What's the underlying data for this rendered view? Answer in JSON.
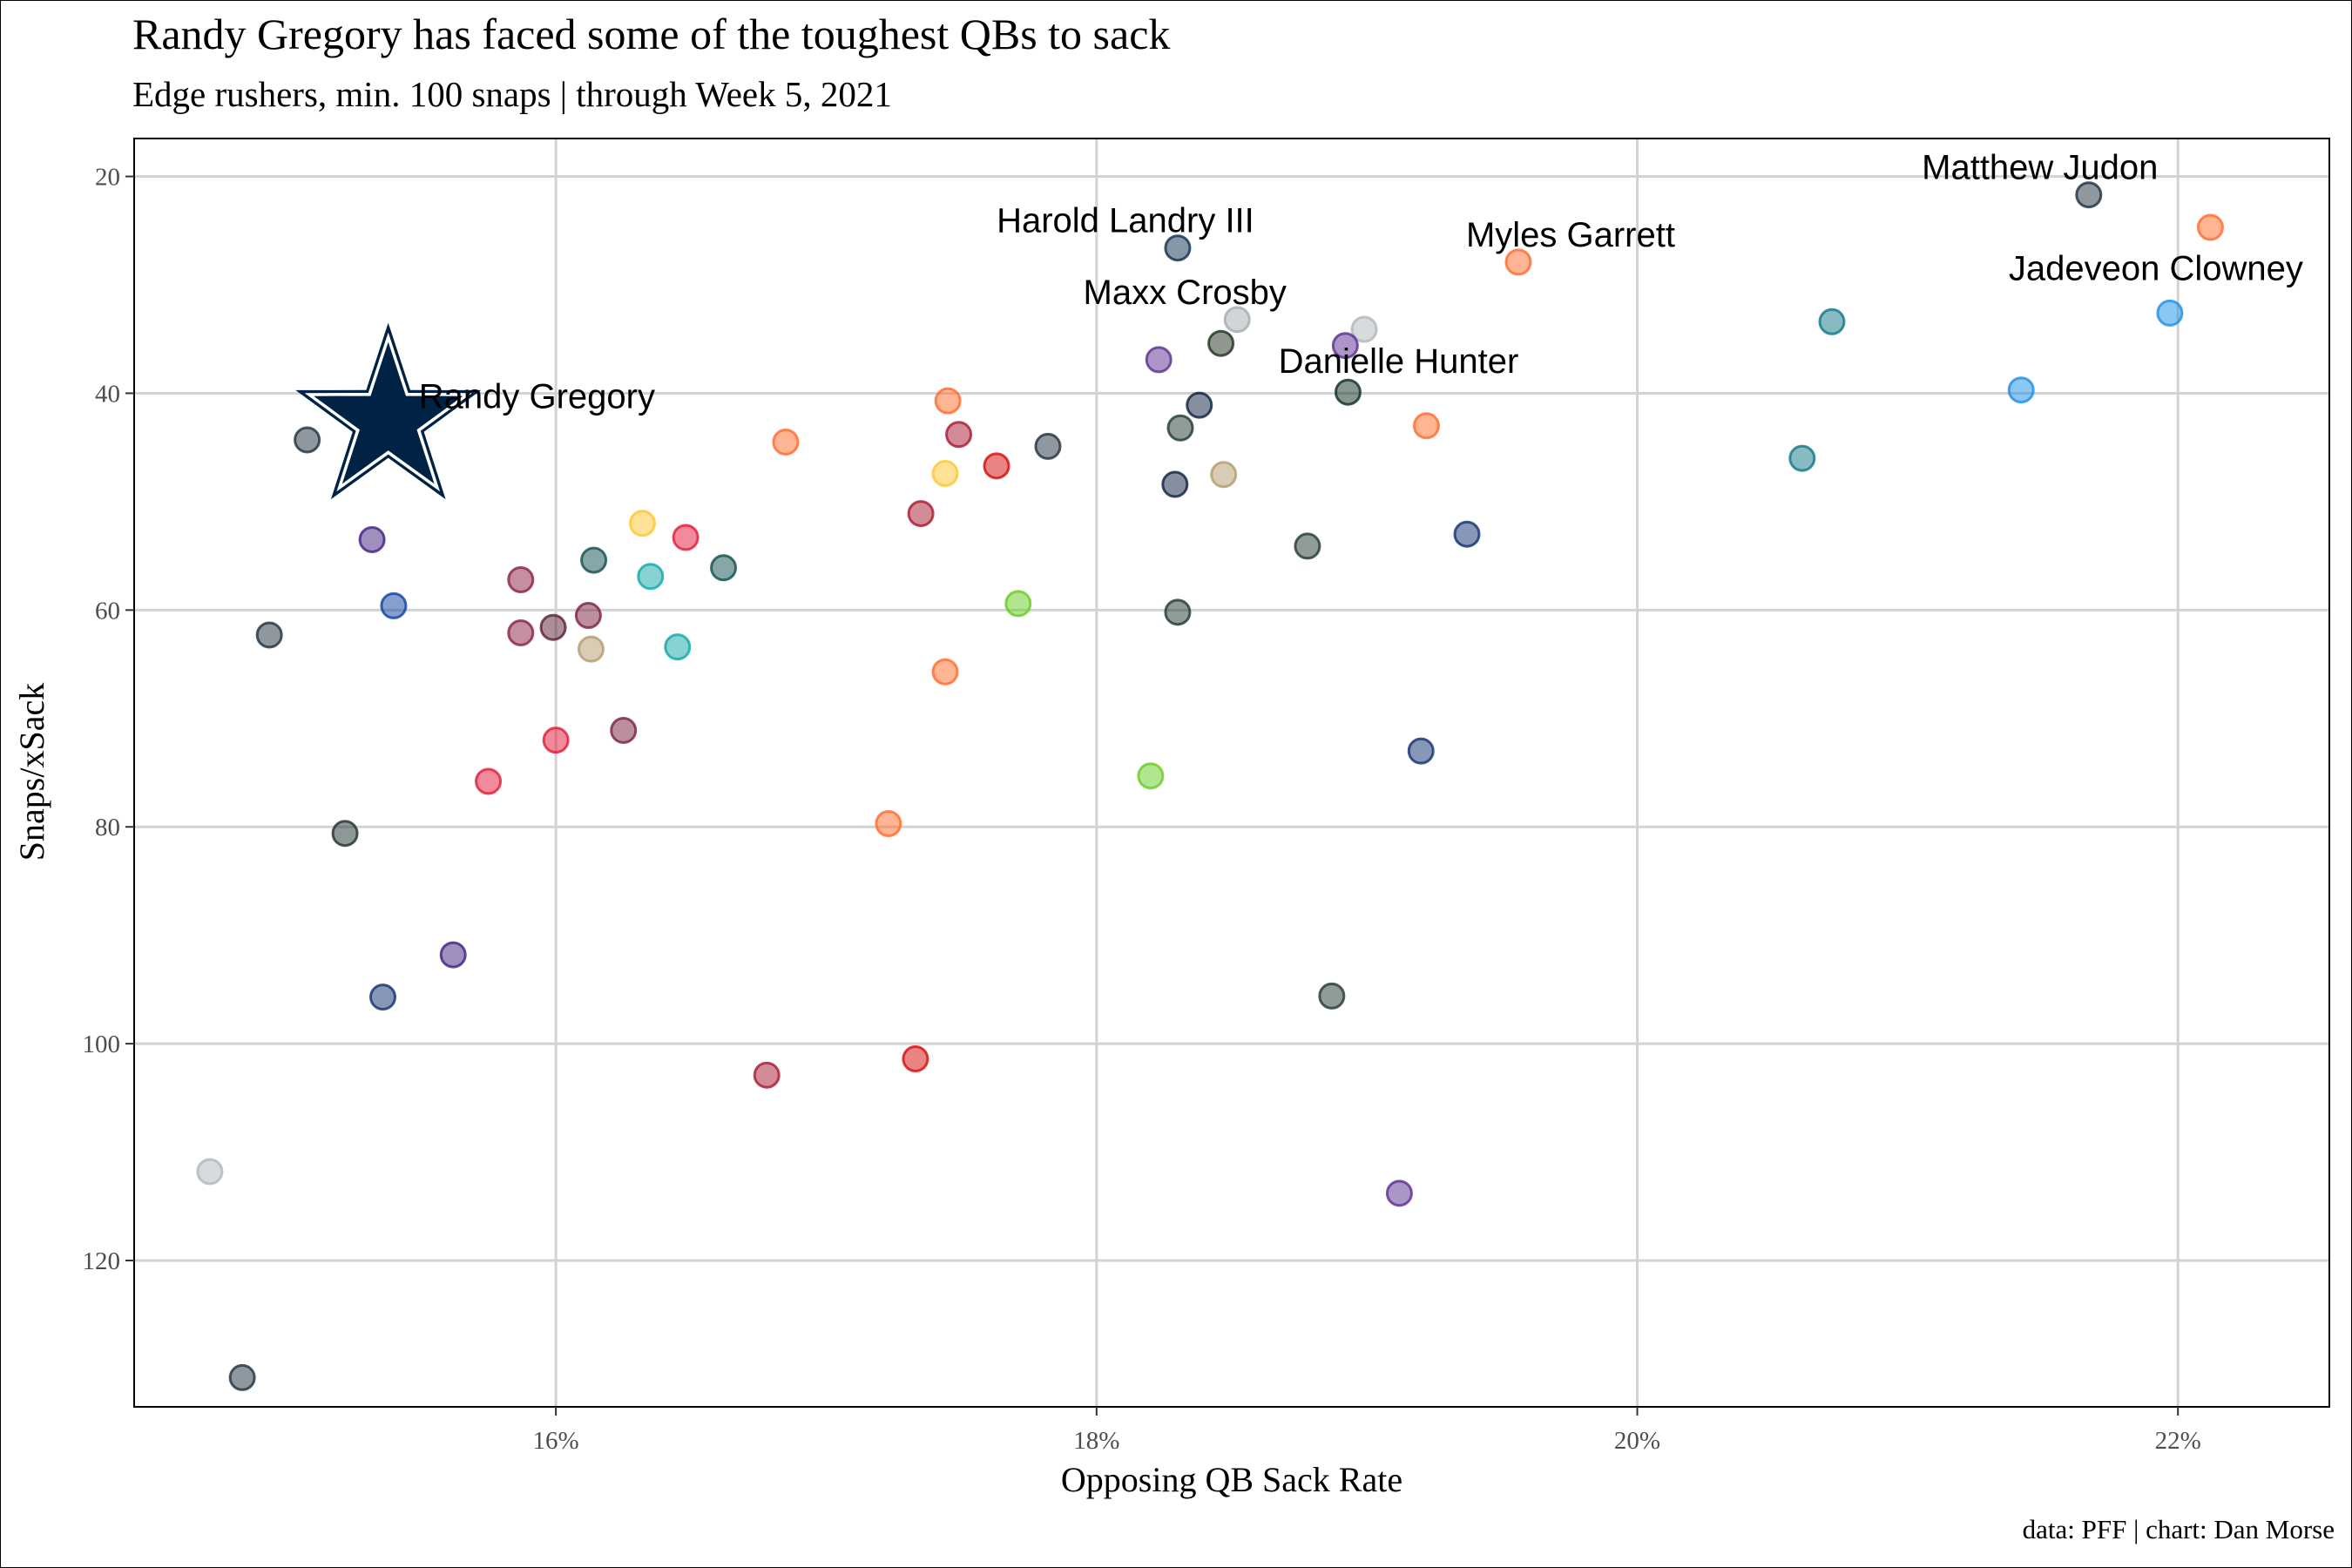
{
  "title": "Randy Gregory has faced some of the toughest QBs to sack",
  "subtitle": "Edge rushers, min. 100 snaps | through Week 5, 2021",
  "caption": "data: PFF | chart: Dan Morse",
  "chart_data": {
    "type": "scatter",
    "xlabel": "Opposing QB Sack Rate",
    "ylabel": "Snaps/xSack",
    "x_ticks": [
      {
        "value": 16,
        "label": "16%"
      },
      {
        "value": 18,
        "label": "18%"
      },
      {
        "value": 20,
        "label": "20%"
      },
      {
        "value": 22,
        "label": "22%"
      }
    ],
    "y_ticks": [
      {
        "value": 20,
        "label": "20"
      },
      {
        "value": 40,
        "label": "40"
      },
      {
        "value": 60,
        "label": "60"
      },
      {
        "value": 80,
        "label": "80"
      },
      {
        "value": 100,
        "label": "100"
      },
      {
        "value": 120,
        "label": "120"
      }
    ],
    "xlim": [
      14.44,
      22.56
    ],
    "ylim": [
      16.5,
      133.5
    ],
    "y_reversed": true,
    "grid": true,
    "highlight": {
      "name": "Randy Gregory",
      "x": 15.38,
      "y": 42.5,
      "marker": "star",
      "color": "#002244"
    },
    "points": [
      {
        "x": 21.67,
        "y": 21.7,
        "color": "#1f2f3f",
        "label": "Matthew Judon"
      },
      {
        "x": 22.12,
        "y": 24.7,
        "color": "#ff6a2a"
      },
      {
        "x": 21.97,
        "y": 32.6,
        "color": "#1a8ee8",
        "label": "Jadeveon Clowney"
      },
      {
        "x": 21.42,
        "y": 39.7,
        "color": "#1a8ee8"
      },
      {
        "x": 20.72,
        "y": 33.4,
        "color": "#0f7784"
      },
      {
        "x": 20.61,
        "y": 46.0,
        "color": "#0f7784"
      },
      {
        "x": 19.56,
        "y": 27.9,
        "color": "#ff6a2a",
        "label": "Myles Garrett"
      },
      {
        "x": 19.22,
        "y": 43.0,
        "color": "#ff6a2a"
      },
      {
        "x": 19.37,
        "y": 53.0,
        "color": "#0f2f6f"
      },
      {
        "x": 19.2,
        "y": 73.0,
        "color": "#0f2f6f"
      },
      {
        "x": 18.99,
        "y": 34.1,
        "color": "#b0b7bc"
      },
      {
        "x": 18.92,
        "y": 35.6,
        "color": "#5a2d91"
      },
      {
        "x": 18.93,
        "y": 39.9,
        "color": "#0d2f1f",
        "label": "Danielle Hunter"
      },
      {
        "x": 18.78,
        "y": 54.1,
        "color": "#1f3a2f"
      },
      {
        "x": 18.87,
        "y": 95.6,
        "color": "#1f3a2f"
      },
      {
        "x": 19.12,
        "y": 113.8,
        "color": "#5a2d91"
      },
      {
        "x": 18.3,
        "y": 26.6,
        "color": "#0d2f4f",
        "label": "Harold Landry III"
      },
      {
        "x": 18.52,
        "y": 33.2,
        "color": "#a5acaf",
        "label": "Maxx Crosby"
      },
      {
        "x": 18.46,
        "y": 35.4,
        "color": "#1f2f1f"
      },
      {
        "x": 18.23,
        "y": 36.9,
        "color": "#5a2d91"
      },
      {
        "x": 18.38,
        "y": 41.1,
        "color": "#0d1f3f"
      },
      {
        "x": 18.31,
        "y": 43.2,
        "color": "#1f3a2f"
      },
      {
        "x": 18.29,
        "y": 48.4,
        "color": "#0d1f3f"
      },
      {
        "x": 18.47,
        "y": 47.5,
        "color": "#b39a6a"
      },
      {
        "x": 18.3,
        "y": 60.2,
        "color": "#1f3a2f"
      },
      {
        "x": 18.2,
        "y": 75.3,
        "color": "#66cc22"
      },
      {
        "x": 17.82,
        "y": 44.9,
        "color": "#1f2f3f"
      },
      {
        "x": 17.71,
        "y": 59.4,
        "color": "#66cc22"
      },
      {
        "x": 17.63,
        "y": 46.7,
        "color": "#d50a0a"
      },
      {
        "x": 17.45,
        "y": 40.7,
        "color": "#ff6a2a"
      },
      {
        "x": 17.49,
        "y": 43.8,
        "color": "#a71930"
      },
      {
        "x": 17.44,
        "y": 47.4,
        "color": "#ffc62f"
      },
      {
        "x": 17.35,
        "y": 51.1,
        "color": "#a71930"
      },
      {
        "x": 17.44,
        "y": 65.7,
        "color": "#ff6a2a"
      },
      {
        "x": 17.23,
        "y": 79.7,
        "color": "#ff6a2a"
      },
      {
        "x": 17.33,
        "y": 101.4,
        "color": "#d50a0a"
      },
      {
        "x": 16.85,
        "y": 44.5,
        "color": "#ff6a2a"
      },
      {
        "x": 16.78,
        "y": 102.9,
        "color": "#a71930"
      },
      {
        "x": 16.62,
        "y": 56.1,
        "color": "#0f4f4f"
      },
      {
        "x": 16.48,
        "y": 53.3,
        "color": "#e31837"
      },
      {
        "x": 16.32,
        "y": 52.0,
        "color": "#ffc62f"
      },
      {
        "x": 16.35,
        "y": 56.9,
        "color": "#0fa8a8"
      },
      {
        "x": 16.45,
        "y": 63.4,
        "color": "#0fa8a8"
      },
      {
        "x": 16.25,
        "y": 71.1,
        "color": "#7a1f3f"
      },
      {
        "x": 16.14,
        "y": 55.4,
        "color": "#0f4f4f"
      },
      {
        "x": 16.12,
        "y": 60.5,
        "color": "#7a1f3f"
      },
      {
        "x": 16.13,
        "y": 63.6,
        "color": "#b39a6a"
      },
      {
        "x": 15.99,
        "y": 61.6,
        "color": "#5a1f2f"
      },
      {
        "x": 16.0,
        "y": 72.0,
        "color": "#e31837"
      },
      {
        "x": 15.87,
        "y": 57.2,
        "color": "#8a1f3f"
      },
      {
        "x": 15.87,
        "y": 62.1,
        "color": "#8a1f3f"
      },
      {
        "x": 15.75,
        "y": 75.8,
        "color": "#e31837"
      },
      {
        "x": 15.62,
        "y": 91.8,
        "color": "#3f1f7f"
      },
      {
        "x": 15.4,
        "y": 59.6,
        "color": "#0f3fa0"
      },
      {
        "x": 15.32,
        "y": 53.5,
        "color": "#3f1f7f"
      },
      {
        "x": 15.36,
        "y": 95.7,
        "color": "#0f2f6f"
      },
      {
        "x": 15.22,
        "y": 80.6,
        "color": "#1f2f2f"
      },
      {
        "x": 15.08,
        "y": 44.3,
        "color": "#1f2f3f"
      },
      {
        "x": 14.94,
        "y": 62.3,
        "color": "#1f2f3f"
      },
      {
        "x": 14.72,
        "y": 111.8,
        "color": "#b0b7bc"
      },
      {
        "x": 14.84,
        "y": 130.8,
        "color": "#1f2f3f"
      }
    ]
  }
}
